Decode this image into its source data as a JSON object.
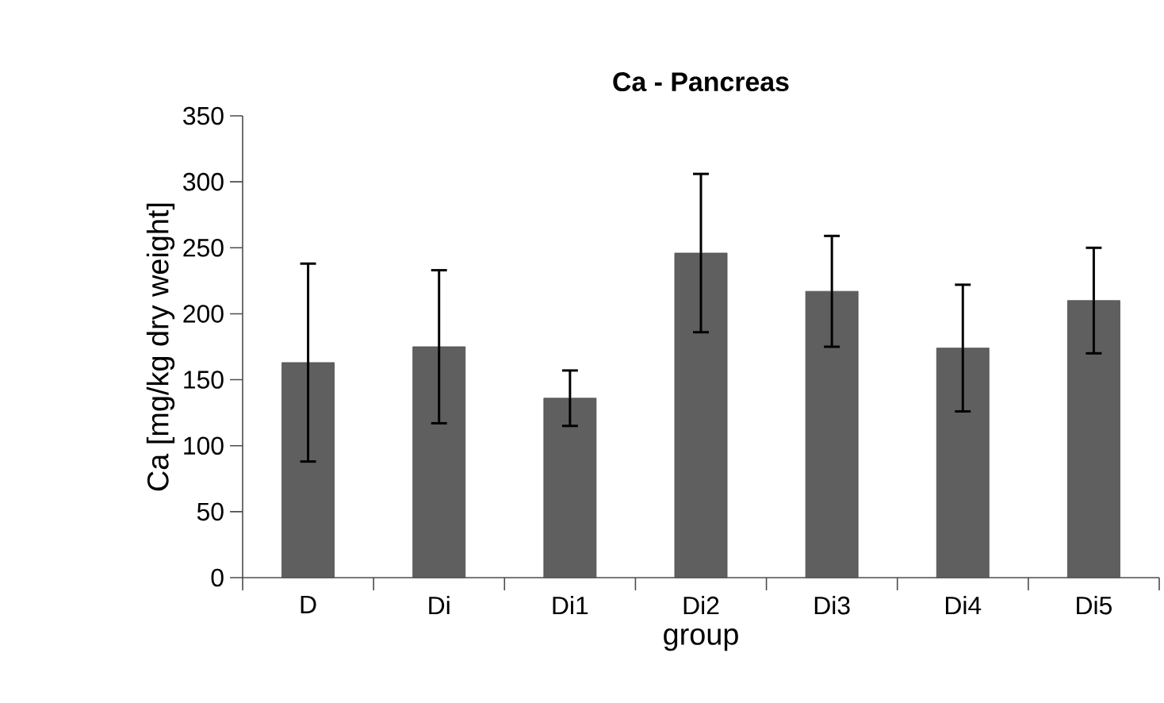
{
  "chart_data": {
    "type": "bar",
    "title": "Ca - Pancreas",
    "xlabel": "group",
    "ylabel": "Ca [mg/kg dry weight]",
    "categories": [
      "D",
      "Di",
      "Di1",
      "Di2",
      "Di3",
      "Di4",
      "Di5"
    ],
    "values": [
      163,
      175,
      136,
      246,
      217,
      174,
      210
    ],
    "errors": [
      75,
      58,
      21,
      60,
      42,
      48,
      40
    ],
    "color": "#5f5f5f",
    "ylim": [
      0,
      350
    ],
    "yticks": [
      0,
      50,
      100,
      150,
      200,
      250,
      300,
      350
    ],
    "grid": false
  }
}
